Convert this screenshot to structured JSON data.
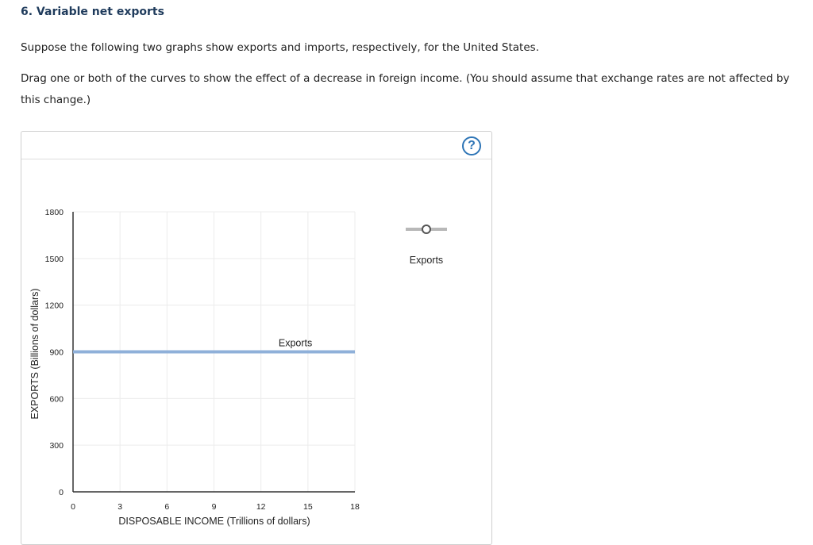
{
  "question": {
    "title": "6. Variable net exports",
    "paragraph1": "Suppose the following two graphs show exports and imports, respectively, for the United States.",
    "paragraph2": "Drag one or both of the curves to show the effect of a decrease in foreign income. (You should assume that exchange rates are not affected by this change.)"
  },
  "panel": {
    "help_icon": "question-mark-icon",
    "help_symbol": "?"
  },
  "palette": {
    "label": "Exports",
    "icon": "line-with-point-icon"
  },
  "colors": {
    "curve": "#8fb0d9",
    "help": "#2e75b6",
    "title": "#1f3b5c",
    "grid": "#ececec"
  },
  "chart_data": {
    "type": "line",
    "ylabel": "EXPORTS (Billions of dollars)",
    "xlabel": "DISPOSABLE INCOME (Trillions of dollars)",
    "xlim": [
      0,
      18
    ],
    "ylim": [
      0,
      1800
    ],
    "xticks": [
      0,
      3,
      6,
      9,
      12,
      15,
      18
    ],
    "yticks": [
      0,
      300,
      600,
      900,
      1200,
      1500,
      1800
    ],
    "grid": true,
    "series": [
      {
        "name": "Exports",
        "x": [
          0,
          18
        ],
        "y": [
          900,
          900
        ],
        "label": "Exports",
        "label_at": [
          14.2,
          955
        ]
      }
    ]
  }
}
